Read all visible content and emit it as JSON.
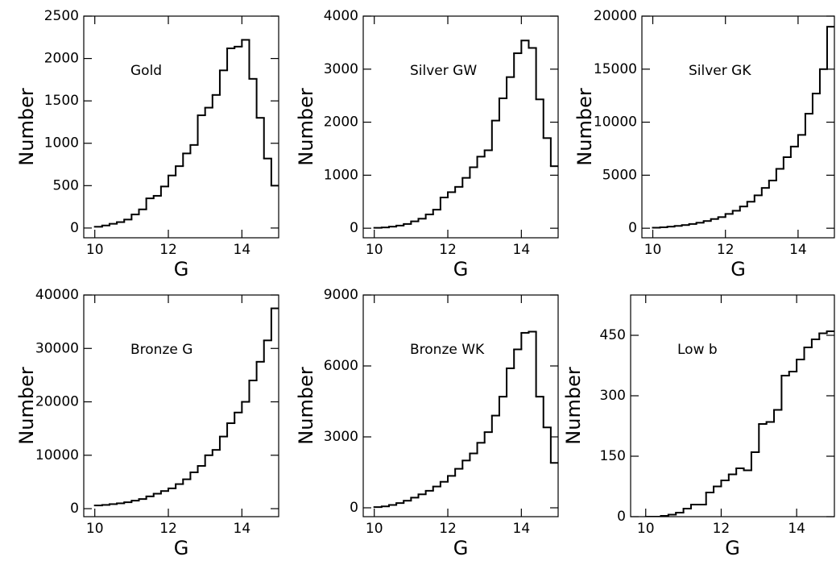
{
  "chart_data": [
    {
      "type": "histogram",
      "annotation": "Gold",
      "xlabel": "G",
      "ylabel": "Number",
      "color": "#000000",
      "bins": [
        10,
        10.2,
        10.4,
        10.6,
        10.8,
        11,
        11.2,
        11.4,
        11.6,
        11.8,
        12,
        12.2,
        12.4,
        12.6,
        12.8,
        13,
        13.2,
        13.4,
        13.6,
        13.8,
        14,
        14.2,
        14.4,
        14.6,
        14.8,
        15
      ],
      "values": [
        15,
        30,
        50,
        70,
        100,
        160,
        220,
        350,
        380,
        490,
        620,
        730,
        880,
        980,
        1330,
        1420,
        1570,
        1860,
        2120,
        2140,
        2220,
        1760,
        1300,
        820,
        500
      ],
      "xlim": [
        9.7,
        15.0
      ],
      "ylim": [
        -115,
        2500
      ],
      "xticks": [
        10,
        12,
        14
      ],
      "yticks": [
        0,
        500,
        1000,
        1500,
        2000,
        2500
      ]
    },
    {
      "type": "histogram",
      "annotation": "Silver GW",
      "xlabel": "G",
      "ylabel": "Number",
      "color": "#000000",
      "bins": [
        10,
        10.2,
        10.4,
        10.6,
        10.8,
        11,
        11.2,
        11.4,
        11.6,
        11.8,
        12,
        12.2,
        12.4,
        12.6,
        12.8,
        13,
        13.2,
        13.4,
        13.6,
        13.8,
        14,
        14.2,
        14.4,
        14.6,
        14.8,
        15
      ],
      "values": [
        8,
        15,
        30,
        50,
        80,
        130,
        180,
        260,
        350,
        580,
        680,
        780,
        950,
        1150,
        1350,
        1470,
        2030,
        2450,
        2850,
        3300,
        3540,
        3400,
        2430,
        1700,
        1170
      ],
      "xlim": [
        9.7,
        15.0
      ],
      "ylim": [
        -180,
        4000
      ],
      "xticks": [
        10,
        12,
        14
      ],
      "yticks": [
        0,
        1000,
        2000,
        3000,
        4000
      ]
    },
    {
      "type": "histogram",
      "annotation": "Silver GK",
      "xlabel": "G",
      "ylabel": "Number",
      "color": "#000000",
      "bins": [
        10,
        10.2,
        10.4,
        10.6,
        10.8,
        11,
        11.2,
        11.4,
        11.6,
        11.8,
        12,
        12.2,
        12.4,
        12.6,
        12.8,
        13,
        13.2,
        13.4,
        13.6,
        13.8,
        14,
        14.2,
        14.4,
        14.6,
        14.8,
        15
      ],
      "values": [
        50,
        90,
        150,
        220,
        300,
        400,
        520,
        680,
        870,
        1050,
        1350,
        1650,
        2050,
        2500,
        3100,
        3800,
        4500,
        5600,
        6700,
        7700,
        8800,
        10800,
        12700,
        15000,
        19000
      ],
      "xlim": [
        9.7,
        15.0
      ],
      "ylim": [
        -900,
        20000
      ],
      "xticks": [
        10,
        12,
        14
      ],
      "yticks": [
        0,
        5000,
        10000,
        15000,
        20000
      ]
    },
    {
      "type": "histogram",
      "annotation": "Bronze G",
      "xlabel": "G",
      "ylabel": "Number",
      "color": "#000000",
      "bins": [
        10,
        10.2,
        10.4,
        10.6,
        10.8,
        11,
        11.2,
        11.4,
        11.6,
        11.8,
        12,
        12.2,
        12.4,
        12.6,
        12.8,
        13,
        13.2,
        13.4,
        13.6,
        13.8,
        14,
        14.2,
        14.4,
        14.6,
        14.8,
        15
      ],
      "values": [
        600,
        700,
        850,
        1000,
        1200,
        1500,
        1800,
        2300,
        2800,
        3300,
        3800,
        4600,
        5500,
        6800,
        8000,
        10000,
        11000,
        13500,
        16000,
        18000,
        20000,
        24000,
        27500,
        31500,
        37500
      ],
      "xlim": [
        9.7,
        15.0
      ],
      "ylim": [
        -1500,
        40000
      ],
      "xticks": [
        10,
        12,
        14
      ],
      "yticks": [
        0,
        10000,
        20000,
        30000,
        40000
      ]
    },
    {
      "type": "histogram",
      "annotation": "Bronze WK",
      "xlabel": "G",
      "ylabel": "Number",
      "color": "#000000",
      "bins": [
        10,
        10.2,
        10.4,
        10.6,
        10.8,
        11,
        11.2,
        11.4,
        11.6,
        11.8,
        12,
        12.2,
        12.4,
        12.6,
        12.8,
        13,
        13.2,
        13.4,
        13.6,
        13.8,
        14,
        14.2,
        14.4,
        14.6,
        14.8,
        15
      ],
      "values": [
        30,
        60,
        120,
        200,
        300,
        430,
        570,
        720,
        900,
        1100,
        1350,
        1650,
        2000,
        2300,
        2750,
        3200,
        3900,
        4700,
        5900,
        6700,
        7400,
        7450,
        4700,
        3400,
        1900
      ],
      "xlim": [
        9.7,
        15.0
      ],
      "ylim": [
        -375,
        9000
      ],
      "xticks": [
        10,
        12,
        14
      ],
      "yticks": [
        0,
        3000,
        6000,
        9000
      ]
    },
    {
      "type": "histogram",
      "annotation": "Low b",
      "xlabel": "G",
      "ylabel": "Number",
      "color": "#000000",
      "bins": [
        10,
        10.2,
        10.4,
        10.6,
        10.8,
        11,
        11.2,
        11.4,
        11.6,
        11.8,
        12,
        12.2,
        12.4,
        12.6,
        12.8,
        13,
        13.2,
        13.4,
        13.6,
        13.8,
        14,
        14.2,
        14.4,
        14.6,
        14.8,
        15
      ],
      "values": [
        0,
        0,
        2,
        5,
        10,
        20,
        30,
        30,
        60,
        75,
        90,
        105,
        120,
        115,
        160,
        230,
        235,
        265,
        350,
        360,
        390,
        420,
        440,
        455,
        460
      ],
      "xlim": [
        9.6,
        15.0
      ],
      "ylim": [
        0,
        550
      ],
      "xticks": [
        10,
        12,
        14
      ],
      "yticks": [
        0,
        150,
        300,
        450
      ]
    }
  ]
}
